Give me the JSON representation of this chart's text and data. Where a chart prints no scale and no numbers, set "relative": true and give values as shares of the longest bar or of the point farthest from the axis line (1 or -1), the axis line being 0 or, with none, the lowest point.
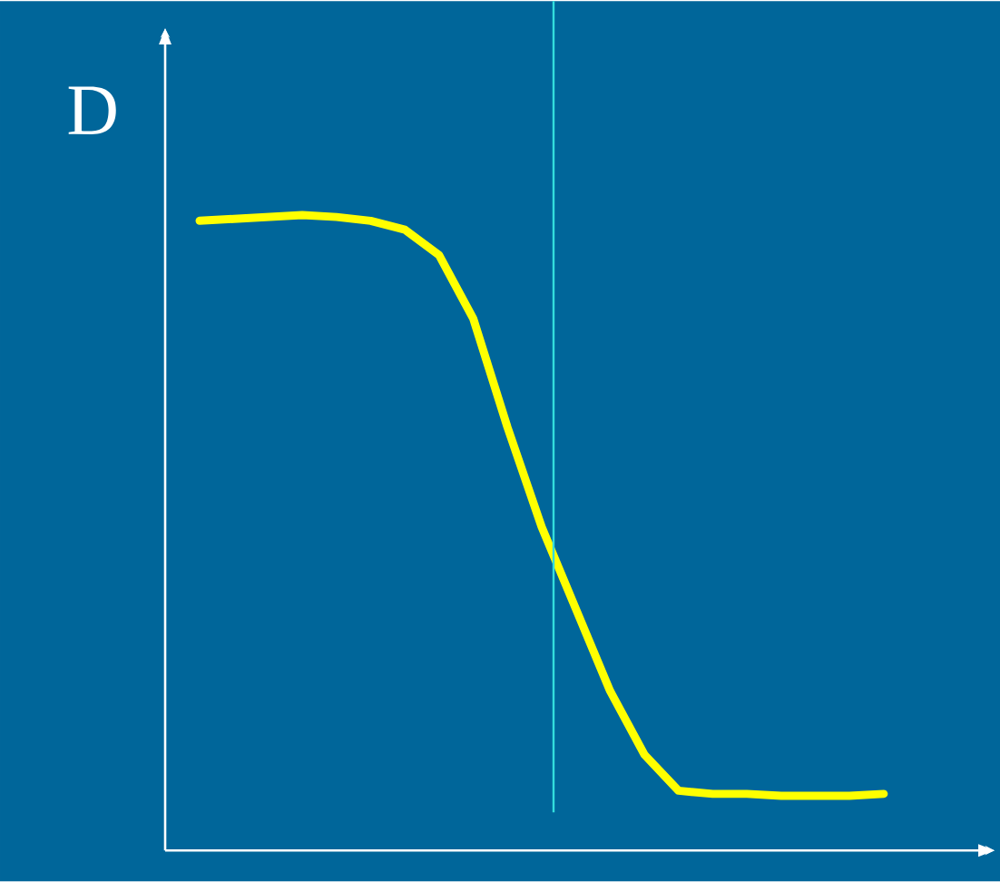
{
  "chart_data": {
    "type": "line",
    "ylabel": "D",
    "relative": true,
    "color": "#ffff00",
    "categories": [
      null,
      null,
      null,
      null,
      null,
      null,
      null,
      null,
      null,
      null,
      null,
      null,
      null,
      null,
      null,
      null,
      null,
      null,
      null,
      null,
      null
    ],
    "values": [
      0.991,
      0.994,
      0.997,
      1,
      0.997,
      0.991,
      0.977,
      0.937,
      0.837,
      0.666,
      0.509,
      0.38,
      0.251,
      0.151,
      0.094,
      0.089,
      0.089,
      0.086,
      0.086,
      0.086,
      0.089
    ]
  }
}
